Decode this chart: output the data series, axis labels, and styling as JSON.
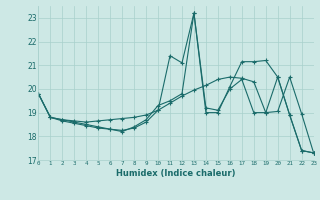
{
  "xlabel": "Humidex (Indice chaleur)",
  "xlim": [
    0,
    23
  ],
  "ylim": [
    17,
    23.5
  ],
  "yticks": [
    17,
    18,
    19,
    20,
    21,
    22,
    23
  ],
  "xticks": [
    0,
    1,
    2,
    3,
    4,
    5,
    6,
    7,
    8,
    9,
    10,
    11,
    12,
    13,
    14,
    15,
    16,
    17,
    18,
    19,
    20,
    21,
    22,
    23
  ],
  "bg_color": "#cde8e5",
  "grid_color": "#a8d0cc",
  "line_color": "#1a6b6a",
  "line1_x": [
    0,
    1,
    2,
    3,
    4,
    5,
    6,
    7,
    8,
    9,
    10,
    11,
    12,
    13,
    14,
    15,
    16,
    17,
    18,
    19,
    20,
    21,
    22,
    23
  ],
  "line1_y": [
    19.8,
    18.8,
    18.7,
    18.6,
    18.5,
    18.4,
    18.3,
    18.2,
    18.4,
    18.7,
    19.3,
    19.5,
    19.8,
    23.2,
    19.2,
    19.1,
    20.0,
    20.4,
    19.0,
    19.0,
    20.5,
    18.9,
    17.4,
    17.3
  ],
  "line2_x": [
    0,
    1,
    2,
    3,
    4,
    5,
    6,
    7,
    8,
    9,
    10,
    11,
    12,
    13,
    14,
    15,
    16,
    17,
    18,
    19,
    20,
    21,
    22,
    23
  ],
  "line2_y": [
    19.8,
    18.8,
    18.7,
    18.65,
    18.6,
    18.65,
    18.7,
    18.75,
    18.8,
    18.9,
    19.1,
    19.4,
    19.7,
    19.95,
    20.15,
    20.4,
    20.5,
    20.45,
    20.3,
    19.0,
    19.05,
    20.5,
    18.95,
    17.3
  ],
  "line3_x": [
    0,
    1,
    2,
    3,
    4,
    5,
    6,
    7,
    8,
    9,
    10,
    11,
    12,
    13,
    14,
    15,
    16,
    17,
    18,
    19,
    20,
    21,
    22,
    23
  ],
  "line3_y": [
    19.8,
    18.8,
    18.65,
    18.55,
    18.45,
    18.35,
    18.3,
    18.25,
    18.35,
    18.6,
    19.1,
    21.4,
    21.1,
    23.2,
    19.0,
    19.0,
    20.1,
    21.15,
    21.15,
    21.2,
    20.5,
    18.9,
    17.4,
    17.3
  ]
}
